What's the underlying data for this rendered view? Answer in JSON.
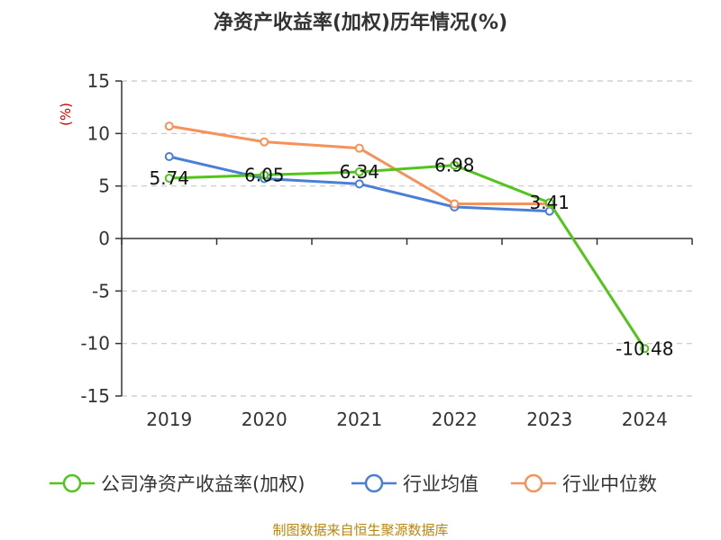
{
  "chart_data": {
    "type": "line",
    "title": "净资产收益率(加权)历年情况(%)",
    "ylabel": "(%)",
    "xlabel": "",
    "categories": [
      "2019",
      "2020",
      "2021",
      "2022",
      "2023",
      "2024"
    ],
    "ylim": [
      -15,
      15
    ],
    "yticks": [
      15,
      10,
      5,
      0,
      -5,
      -10,
      -15
    ],
    "grid": true,
    "legend_position": "bottom",
    "series": [
      {
        "name": "公司净资产收益率(加权)",
        "color": "#52c41a",
        "values": [
          5.74,
          6.05,
          6.34,
          6.98,
          3.41,
          -10.48
        ],
        "labels": [
          "5.74",
          "6.05",
          "6.34",
          "6.98",
          "3.41",
          "-10.48"
        ]
      },
      {
        "name": "行业均值",
        "color": "#4a7fd8",
        "values": [
          7.8,
          5.7,
          5.2,
          3.0,
          2.6,
          null
        ]
      },
      {
        "name": "行业中位数",
        "color": "#f7915a",
        "values": [
          10.7,
          9.2,
          8.6,
          3.3,
          3.3,
          null
        ]
      }
    ],
    "source": "制图数据来自恒生聚源数据库"
  }
}
